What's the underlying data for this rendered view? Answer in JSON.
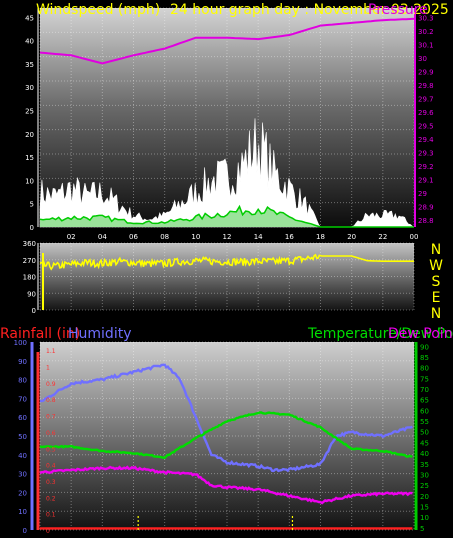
{
  "chart_data": [
    {
      "type": "line",
      "title_left": "Windspeed (mph)",
      "title_mid": "24 hour graph day : November 03 2025",
      "title_right": "Pressure",
      "x_ticks": [
        "02",
        "04",
        "06",
        "08",
        "10",
        "12",
        "14",
        "16",
        "18",
        "20",
        "22",
        "00"
      ],
      "y_left_ticks": [
        "0",
        "5",
        "10",
        "15",
        "20",
        "25",
        "30",
        "35",
        "40",
        "45"
      ],
      "y_left_range": [
        0,
        47
      ],
      "y_right_ticks": [
        "28.8",
        "28.9",
        "29",
        "29.1",
        "29.2",
        "29.3",
        "29.4",
        "29.5",
        "29.6",
        "29.7",
        "29.8",
        "29.9",
        "30",
        "30.1",
        "30.2",
        "30.3"
      ],
      "y_right_range": [
        28.75,
        30.37
      ],
      "colors": {
        "pressure": "#e000e0",
        "gust": "#ffffff",
        "avg": "#00cc00",
        "avg_fill": "#90e090",
        "title": "#ffff00"
      },
      "series": [
        {
          "values_hours": [
            0,
            2,
            4,
            6,
            8,
            10,
            12,
            14,
            16,
            18,
            20,
            22,
            24
          ],
          "values": [
            30.04,
            30.02,
            29.96,
            30.02,
            30.07,
            30.15,
            30.15,
            30.14,
            30.17,
            30.24,
            30.26,
            30.28,
            30.29
          ]
        },
        {
          "values_hours": [
            0,
            1,
            2,
            3,
            4,
            5,
            6,
            7,
            8,
            9,
            10,
            11,
            12,
            13,
            14,
            15,
            16,
            17,
            18,
            20,
            21,
            22,
            23,
            24
          ],
          "values": [
            9,
            8,
            10,
            8,
            9,
            6,
            3,
            2,
            3,
            6,
            9,
            12,
            13,
            16,
            22,
            14,
            10,
            6,
            0,
            0,
            3,
            3,
            3,
            0
          ]
        },
        {
          "values_hours": [
            0,
            2,
            4,
            6,
            8,
            10,
            12,
            14,
            16,
            18,
            20,
            24
          ],
          "values": [
            1.5,
            2,
            2,
            1,
            1,
            2,
            3,
            4,
            2,
            0,
            0,
            0
          ]
        }
      ]
    },
    {
      "type": "line",
      "y_ticks": [
        "0",
        "90",
        "180",
        "270",
        "360"
      ],
      "y_range": [
        0,
        360
      ],
      "direction_labels": [
        "N",
        "W",
        "S",
        "E",
        "N"
      ],
      "colors": {
        "line": "#ffff00"
      },
      "series": [
        {
          "values_hours": [
            0,
            1,
            2,
            3,
            4,
            5,
            6,
            7,
            8,
            9,
            10,
            11,
            12,
            13,
            14,
            15,
            16,
            17,
            18,
            19,
            20,
            21,
            22,
            23,
            24
          ],
          "values": [
            240,
            235,
            245,
            255,
            250,
            260,
            255,
            248,
            250,
            260,
            265,
            262,
            260,
            258,
            262,
            260,
            265,
            275,
            290,
            290,
            290,
            265,
            262,
            262,
            262
          ]
        }
      ]
    },
    {
      "type": "line",
      "title_rain": "Rainfall (in)",
      "title_hum": "Humidity",
      "title_temp": "Temperature/Dew Point",
      "title_dew": "Dew Point (°F)",
      "y_hum_ticks": [
        "0",
        "10",
        "20",
        "30",
        "40",
        "50",
        "60",
        "70",
        "80",
        "90",
        "100"
      ],
      "y_hum_range": [
        0,
        100
      ],
      "y_rain_ticks": [
        "0",
        "0.1",
        "0.2",
        "0.3",
        "0.4",
        "0.5",
        "0.6",
        "0.7",
        "0.8",
        "0.9",
        "1",
        "1.1"
      ],
      "y_rain_range": [
        0,
        1.15
      ],
      "y_temp_ticks": [
        "5",
        "10",
        "15",
        "20",
        "25",
        "30",
        "35",
        "40",
        "45",
        "50",
        "55",
        "60",
        "65",
        "70",
        "75",
        "80",
        "85",
        "90"
      ],
      "y_temp_range": [
        4,
        92
      ],
      "colors": {
        "rain": "#ff2020",
        "hum": "#7070ff",
        "temp": "#00dd00",
        "dew": "#ee00ee",
        "rain_axis": "#ff3030",
        "hum_axis": "#7070ff",
        "temp_axis": "#00cc00"
      },
      "series": [
        {
          "values_hours": [
            0,
            2,
            4,
            6,
            8,
            9,
            10,
            11,
            12,
            14,
            15,
            16,
            18,
            19,
            20,
            22,
            24
          ],
          "values": [
            68,
            78,
            80,
            84,
            88,
            80,
            60,
            40,
            36,
            34,
            32,
            32,
            35,
            50,
            52,
            50,
            55
          ]
        },
        {
          "values_hours": [
            0,
            2,
            4,
            6,
            8,
            10,
            12,
            14,
            16,
            18,
            20,
            22,
            24
          ],
          "values": [
            43,
            43,
            41,
            40,
            38,
            47,
            55,
            59,
            58,
            52,
            42,
            41,
            38
          ]
        },
        {
          "values_hours": [
            0,
            2,
            4,
            6,
            8,
            10,
            11,
            12,
            14,
            16,
            18,
            20,
            22,
            24
          ],
          "values": [
            31,
            32,
            33,
            33,
            31,
            30,
            25,
            24,
            23,
            20,
            17,
            20,
            21,
            21
          ]
        },
        {
          "values_hours": [
            0,
            24
          ],
          "values": [
            0.01,
            0.01
          ]
        }
      ]
    }
  ]
}
